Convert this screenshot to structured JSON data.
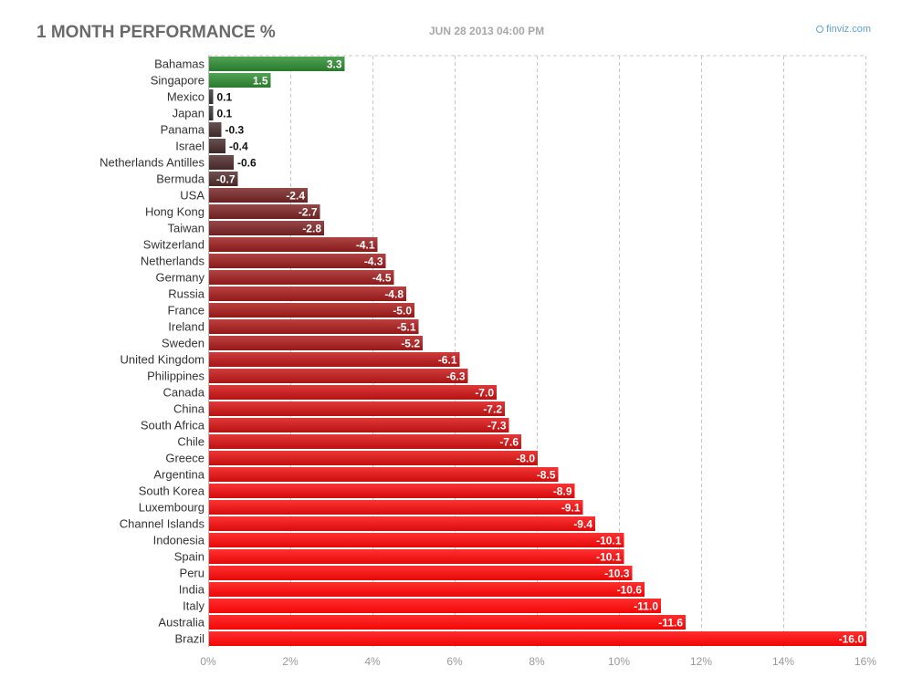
{
  "header": {
    "title": "1 MONTH PERFORMANCE %",
    "date": "JUN 28 2013 04:00 PM",
    "brand": "finviz.com"
  },
  "colors": {
    "positive": "#2e7d32",
    "grid": "#c8c8c8",
    "tick_text": "#999999",
    "category_text": "#333333"
  },
  "chart_data": {
    "type": "bar",
    "orientation": "horizontal",
    "title": "1 MONTH PERFORMANCE %",
    "categories": [
      "Bahamas",
      "Singapore",
      "Mexico",
      "Japan",
      "Panama",
      "Israel",
      "Netherlands Antilles",
      "Bermuda",
      "USA",
      "Hong Kong",
      "Taiwan",
      "Switzerland",
      "Netherlands",
      "Germany",
      "Russia",
      "France",
      "Ireland",
      "Sweden",
      "United Kingdom",
      "Philippines",
      "Canada",
      "China",
      "South Africa",
      "Chile",
      "Greece",
      "Argentina",
      "South Korea",
      "Luxembourg",
      "Channel Islands",
      "Indonesia",
      "Spain",
      "Peru",
      "India",
      "Italy",
      "Australia",
      "Brazil"
    ],
    "values": [
      3.3,
      1.5,
      0.1,
      0.1,
      -0.3,
      -0.4,
      -0.6,
      -0.7,
      -2.4,
      -2.7,
      -2.8,
      -4.1,
      -4.3,
      -4.5,
      -4.8,
      -5.0,
      -5.1,
      -5.2,
      -6.1,
      -6.3,
      -7.0,
      -7.2,
      -7.3,
      -7.6,
      -8.0,
      -8.5,
      -8.9,
      -9.1,
      -9.4,
      -10.1,
      -10.1,
      -10.3,
      -10.6,
      -11.0,
      -11.6,
      -16.0
    ],
    "value_labels": [
      "3.3",
      "1.5",
      "0.1",
      "0.1",
      "-0.3",
      "-0.4",
      "-0.6",
      "-0.7",
      "-2.4",
      "-2.7",
      "-2.8",
      "-4.1",
      "-4.3",
      "-4.5",
      "-4.8",
      "-5.0",
      "-5.1",
      "-5.2",
      "-6.1",
      "-6.3",
      "-7.0",
      "-7.2",
      "-7.3",
      "-7.6",
      "-8.0",
      "-8.5",
      "-8.9",
      "-9.1",
      "-9.4",
      "-10.1",
      "-10.1",
      "-10.3",
      "-10.6",
      "-11.0",
      "-11.6",
      "-16.0"
    ],
    "xlim": [
      0,
      16
    ],
    "x_ticks": [
      0,
      2,
      4,
      6,
      8,
      10,
      12,
      14,
      16
    ],
    "x_tick_labels": [
      "0%",
      "2%",
      "4%",
      "6%",
      "8%",
      "10%",
      "12%",
      "14%",
      "16%"
    ],
    "scale_note": "bar length = absolute value",
    "grid": true
  }
}
